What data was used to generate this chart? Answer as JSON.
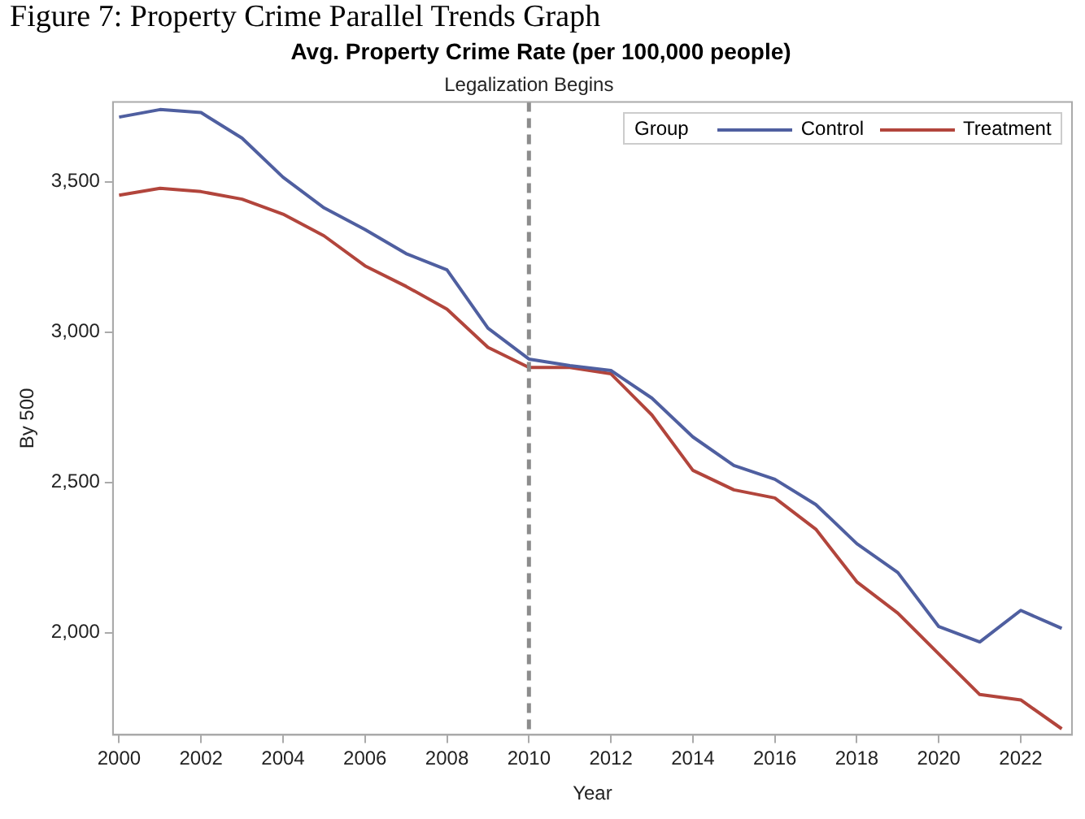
{
  "chart_data": {
    "type": "line",
    "title": "Avg. Property Crime Rate (per 100,000 people)",
    "xlabel": "Year",
    "ylabel": "By 500",
    "annotations": [
      "Figure 7: Property Crime Parallel Trends Graph"
    ],
    "legend_title": "Group",
    "legend": "top right",
    "grid": false,
    "marker": "none",
    "line_style": "solid",
    "x": [
      2000,
      2001,
      2002,
      2003,
      2004,
      2005,
      2006,
      2007,
      2008,
      2009,
      2010,
      2011,
      2012,
      2013,
      2014,
      2015,
      2016,
      2017,
      2018,
      2019,
      2020,
      2021,
      2022,
      2023
    ],
    "series": [
      {
        "name": "Control",
        "color": "#4f5fa0",
        "values": [
          3715,
          3740,
          3730,
          3645,
          3515,
          3413,
          3341,
          3261,
          3207,
          3013,
          2910,
          2888,
          2872,
          2780,
          2651,
          2556,
          2510,
          2426,
          2296,
          2200,
          2020,
          1969,
          2074,
          2014
        ]
      },
      {
        "name": "Treatment",
        "color": "#b2453c",
        "values": [
          3455,
          3478,
          3467,
          3442,
          3392,
          3320,
          3220,
          3152,
          3076,
          2949,
          2882,
          2882,
          2861,
          2724,
          2540,
          2475,
          2448,
          2344,
          2169,
          2065,
          1929,
          1794,
          1776,
          1680
        ]
      }
    ],
    "xlim": [
      1999.85,
      2023.25
    ],
    "xticks": [
      2000,
      2002,
      2004,
      2006,
      2008,
      2010,
      2012,
      2014,
      2016,
      2018,
      2020,
      2022
    ],
    "ylim": [
      1660,
      3765
    ],
    "yticks": [
      {
        "value": 2000,
        "label": "2,000"
      },
      {
        "value": 2500,
        "label": "2,500"
      },
      {
        "value": 3000,
        "label": "3,000"
      },
      {
        "value": 3500,
        "label": "3,500"
      }
    ],
    "ref_lines": [
      {
        "axis": "x",
        "value": 2010,
        "label": "Legalization Begins",
        "color": "#8c8c8c",
        "line_style": "dashed"
      }
    ]
  }
}
